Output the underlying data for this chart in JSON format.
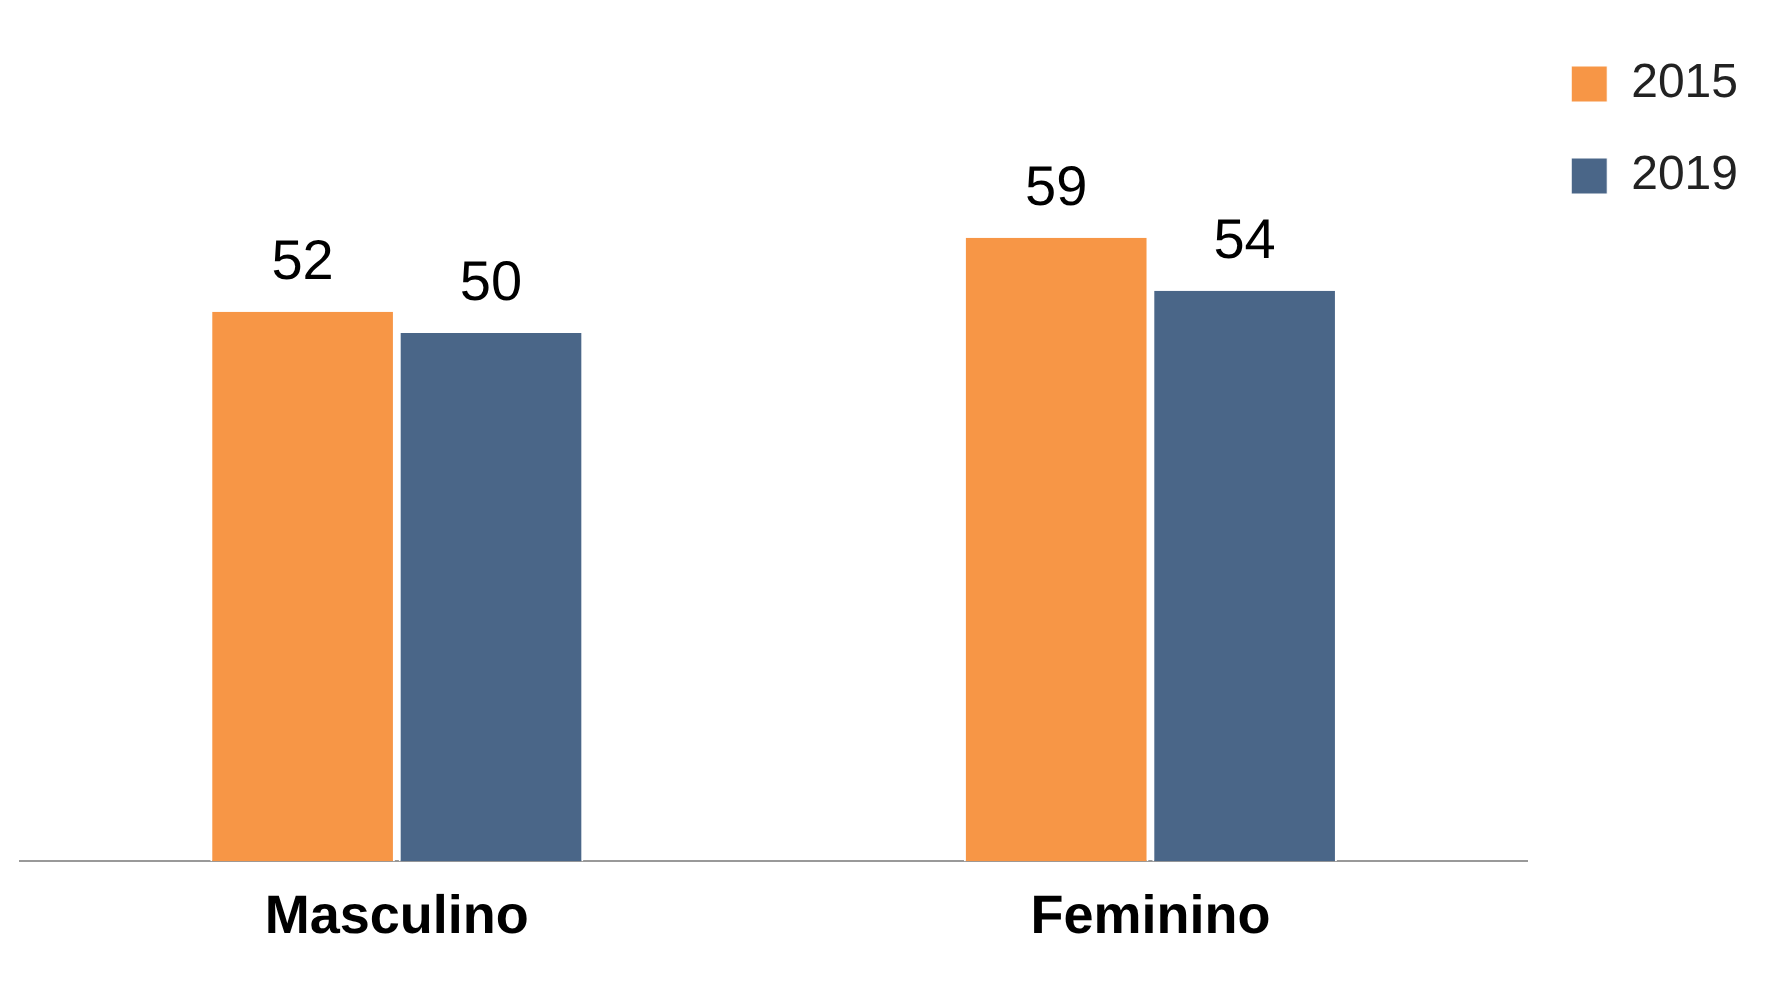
{
  "chart_data": {
    "type": "bar",
    "categories": [
      "Masculino",
      "Feminino"
    ],
    "series": [
      {
        "name": "2015",
        "color": "#f79646",
        "values": [
          52,
          59
        ]
      },
      {
        "name": "2019",
        "color": "#4a6688",
        "values": [
          50,
          54
        ]
      }
    ],
    "data_labels": true,
    "legend": "top right",
    "grid": false
  }
}
